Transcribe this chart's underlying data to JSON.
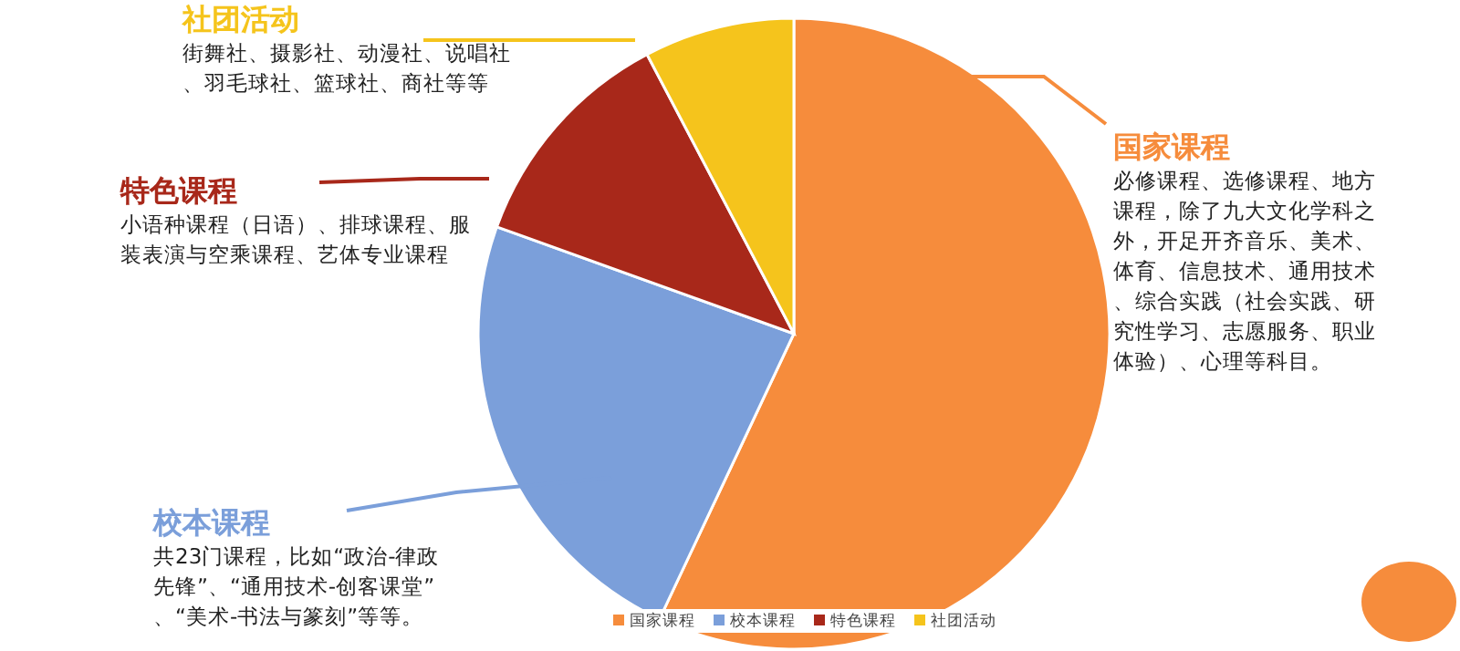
{
  "chart_data": {
    "type": "pie",
    "categories": [
      "国家课程",
      "校本课程",
      "特色课程",
      "社团活动"
    ],
    "values": [
      57,
      23.5,
      11.8,
      7.7
    ],
    "colors": [
      "#f68c3c",
      "#7b9fda",
      "#a8281a",
      "#f5c41c"
    ],
    "annotations": [
      "必修课程、选修课程、地方课程，除了九大文化学科之外，开足开齐音乐、美术、体育、信息技术、通用技术、综合实践（社会实践、研究性学习、志愿服务、职业体验）、心理等科目。",
      "共23门课程，比如“政治-律政先锋”、“通用技术-创客课堂”、“美术-书法与篆刻”等等。",
      "小语种课程（日语）、排球课程、服装表演与空乘课程、艺体专业课程",
      "街舞社、摄影社、动漫社、说唱社、羽毛球社、篮球社、商社等等"
    ],
    "legend": "bottom"
  }
}
